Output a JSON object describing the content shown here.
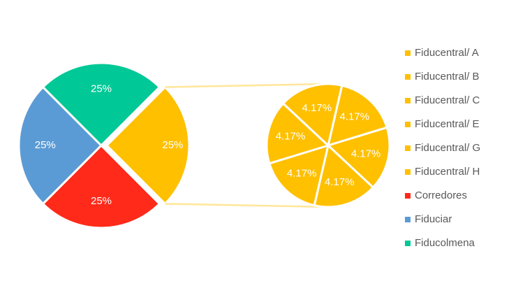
{
  "chart_data": {
    "type": "pie-of-pie",
    "categories": [
      "Fiducentral/ A",
      "Fiducentral/ B",
      "Fiducentral/ C",
      "Fiducentral/ E",
      "Fiducentral/ G",
      "Fiducentral/ H",
      "Corredores",
      "Fiduciar",
      "Fiducolmena"
    ],
    "values": [
      4.17,
      4.17,
      4.17,
      4.17,
      4.17,
      4.17,
      25,
      25,
      25
    ],
    "value_labels": [
      "4.17%",
      "4.17%",
      "4.17%",
      "4.17%",
      "4.17%",
      "4.17%",
      "25%",
      "25%",
      "25%"
    ],
    "colors": [
      "#ffc000",
      "#ffc000",
      "#ffc000",
      "#ffc000",
      "#ffc000",
      "#ffc000",
      "#ff2a1a",
      "#5b9bd5",
      "#00c896"
    ],
    "split_count": 6,
    "other_value": 25,
    "other_value_label": "25%",
    "other_color": "#ffc000",
    "legend": "right"
  }
}
